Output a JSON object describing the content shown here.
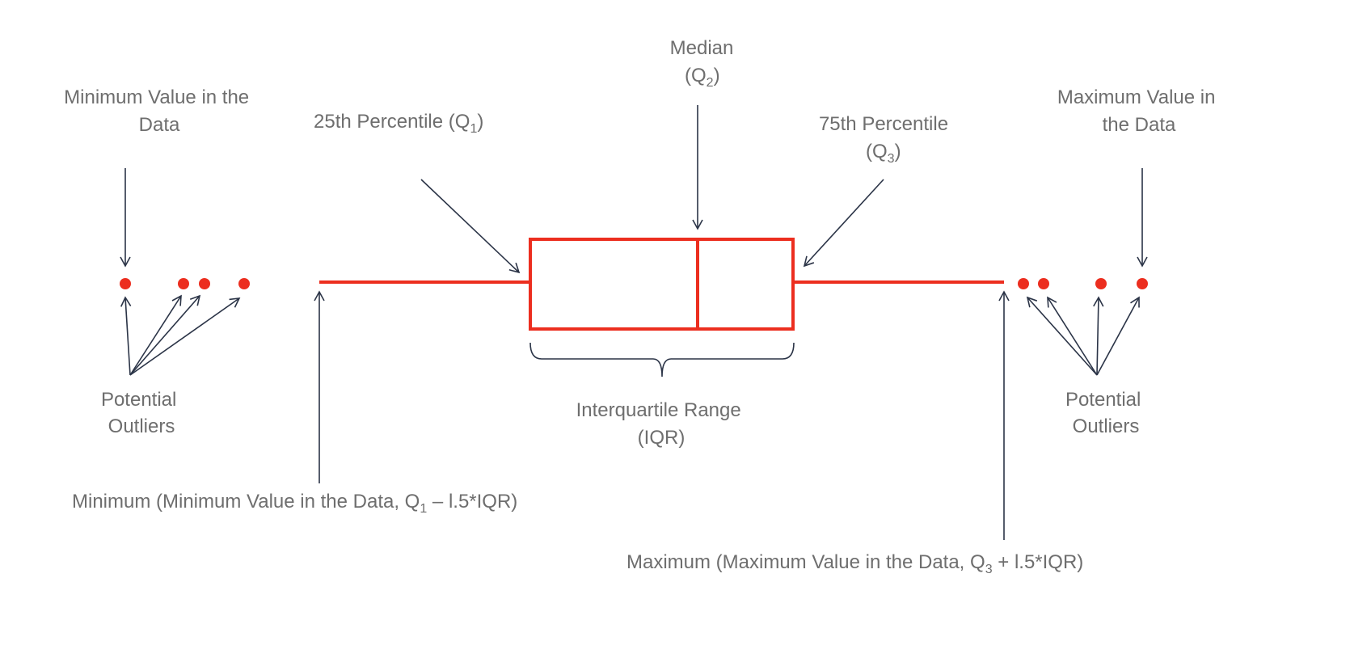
{
  "labels": {
    "min_value_line1": "Minimum Value in the",
    "min_value_line2": "Data",
    "q1_text": "25th Percentile (Q",
    "q1_sub": "1",
    "q1_close": ")",
    "median_line1": "Median",
    "median_open": "(Q",
    "median_sub": "2",
    "median_close": ")",
    "q3_line1": "75th Percentile",
    "q3_open": "(Q",
    "q3_sub": "3",
    "q3_close": ")",
    "max_value_line1": "Maximum Value in",
    "max_value_line2": "the Data",
    "outliers_left_line1": "Potential",
    "outliers_left_line2": "Outliers",
    "outliers_right_line1": "Potential",
    "outliers_right_line2": "Outliers",
    "iqr_line1": "Interquartile Range",
    "iqr_line2": "(IQR)",
    "minimum_pre": "Minimum (Minimum Value in the Data, Q",
    "minimum_sub": "1",
    "minimum_post": " – l.5*IQR)",
    "maximum_pre": "Maximum (Maximum Value in the Data, Q",
    "maximum_sub": "3",
    "maximum_post": " + l.5*IQR)"
  },
  "colors": {
    "box": "#ec2e1f",
    "arrows": "#2b3447",
    "text": "#6e6e6e",
    "brace": "#2b3447"
  }
}
